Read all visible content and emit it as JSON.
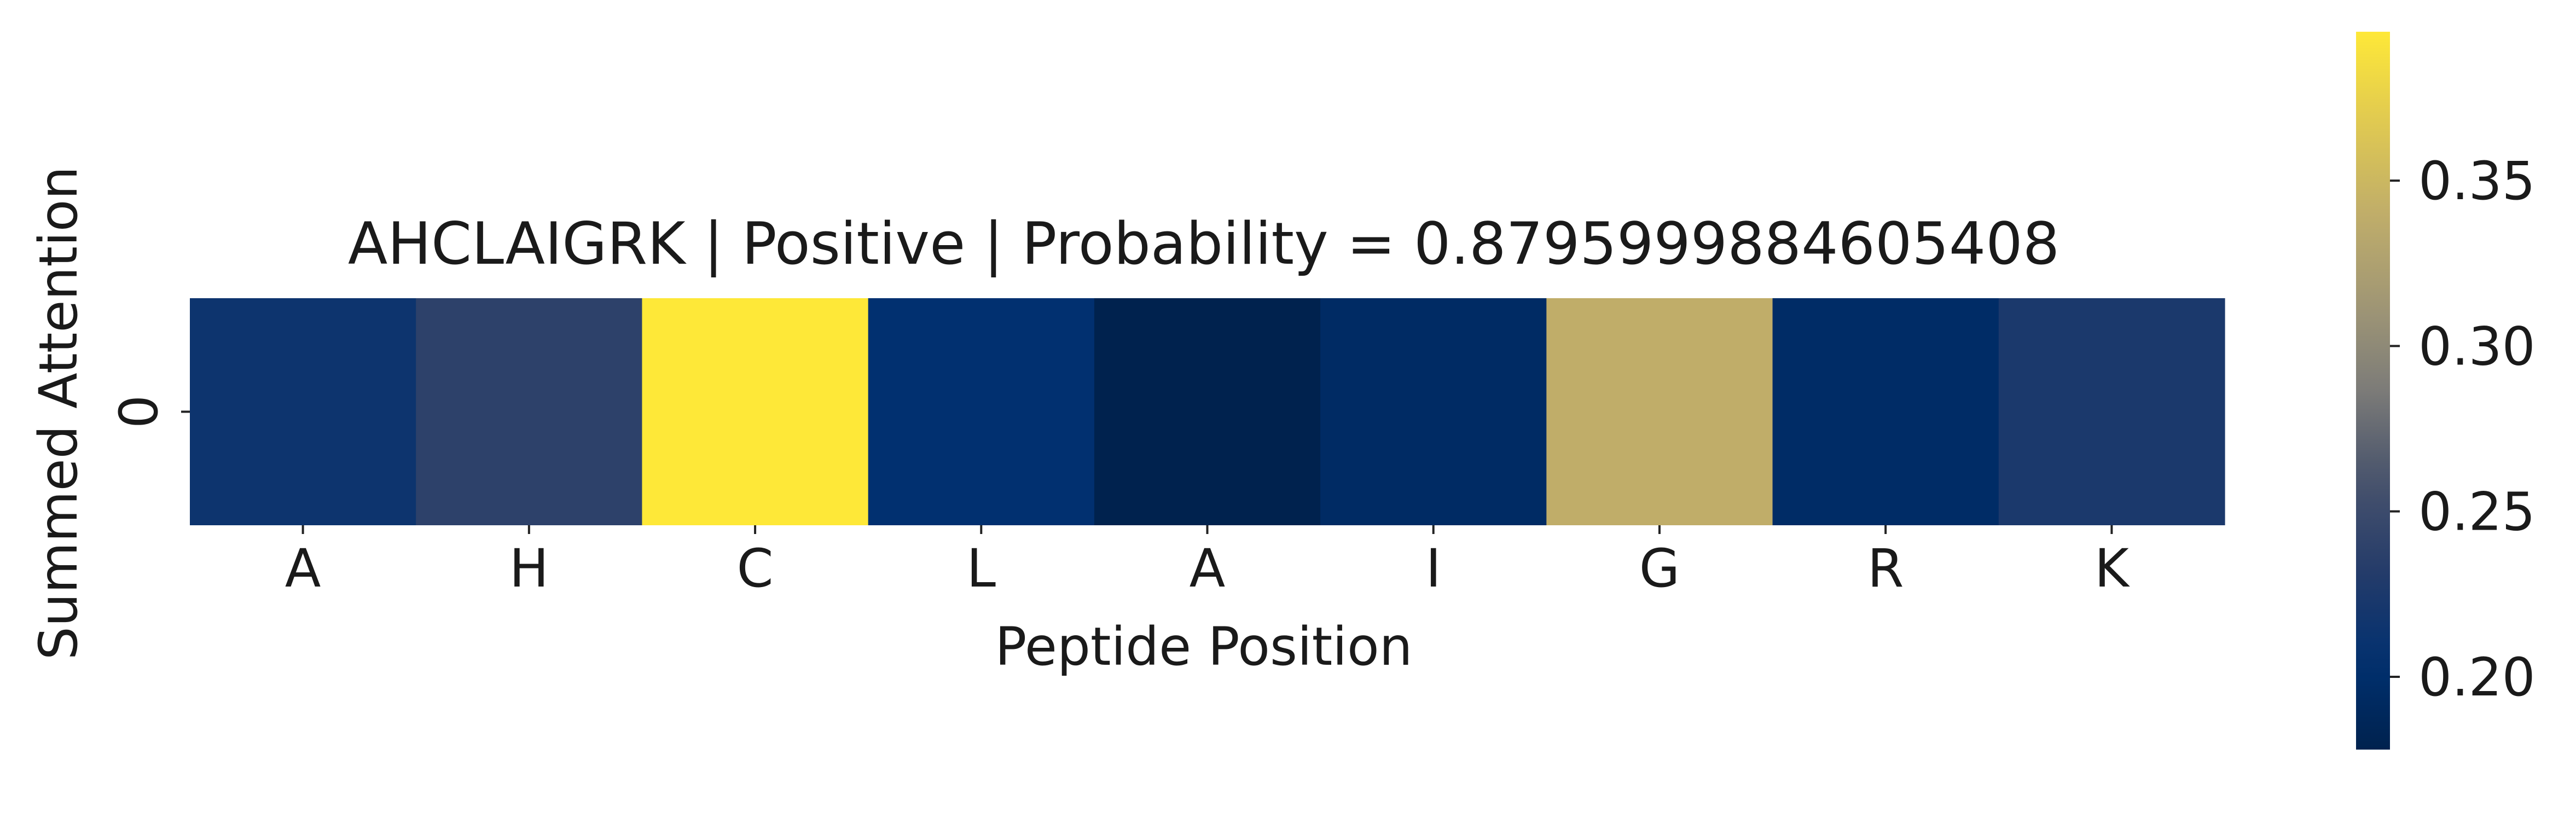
{
  "chart_data": {
    "type": "heatmap",
    "title": "AHCLAIGRK | Positive | Probability = 0.8795999884605408",
    "xlabel": "Peptide Position",
    "ylabel": "Summed Attention",
    "x_categories": [
      "A",
      "H",
      "C",
      "L",
      "A",
      "I",
      "G",
      "R",
      "K"
    ],
    "y_categories": [
      "0"
    ],
    "values": [
      [
        0.214,
        0.238,
        0.395,
        0.205,
        0.178,
        0.195,
        0.34,
        0.196,
        0.225
      ]
    ],
    "colorbar": {
      "colormap": "cividis",
      "vmin": 0.178,
      "vmax": 0.395,
      "ticks": [
        0.2,
        0.25,
        0.3,
        0.35
      ],
      "tick_labels": [
        "0.20",
        "0.25",
        "0.30",
        "0.35"
      ]
    }
  }
}
